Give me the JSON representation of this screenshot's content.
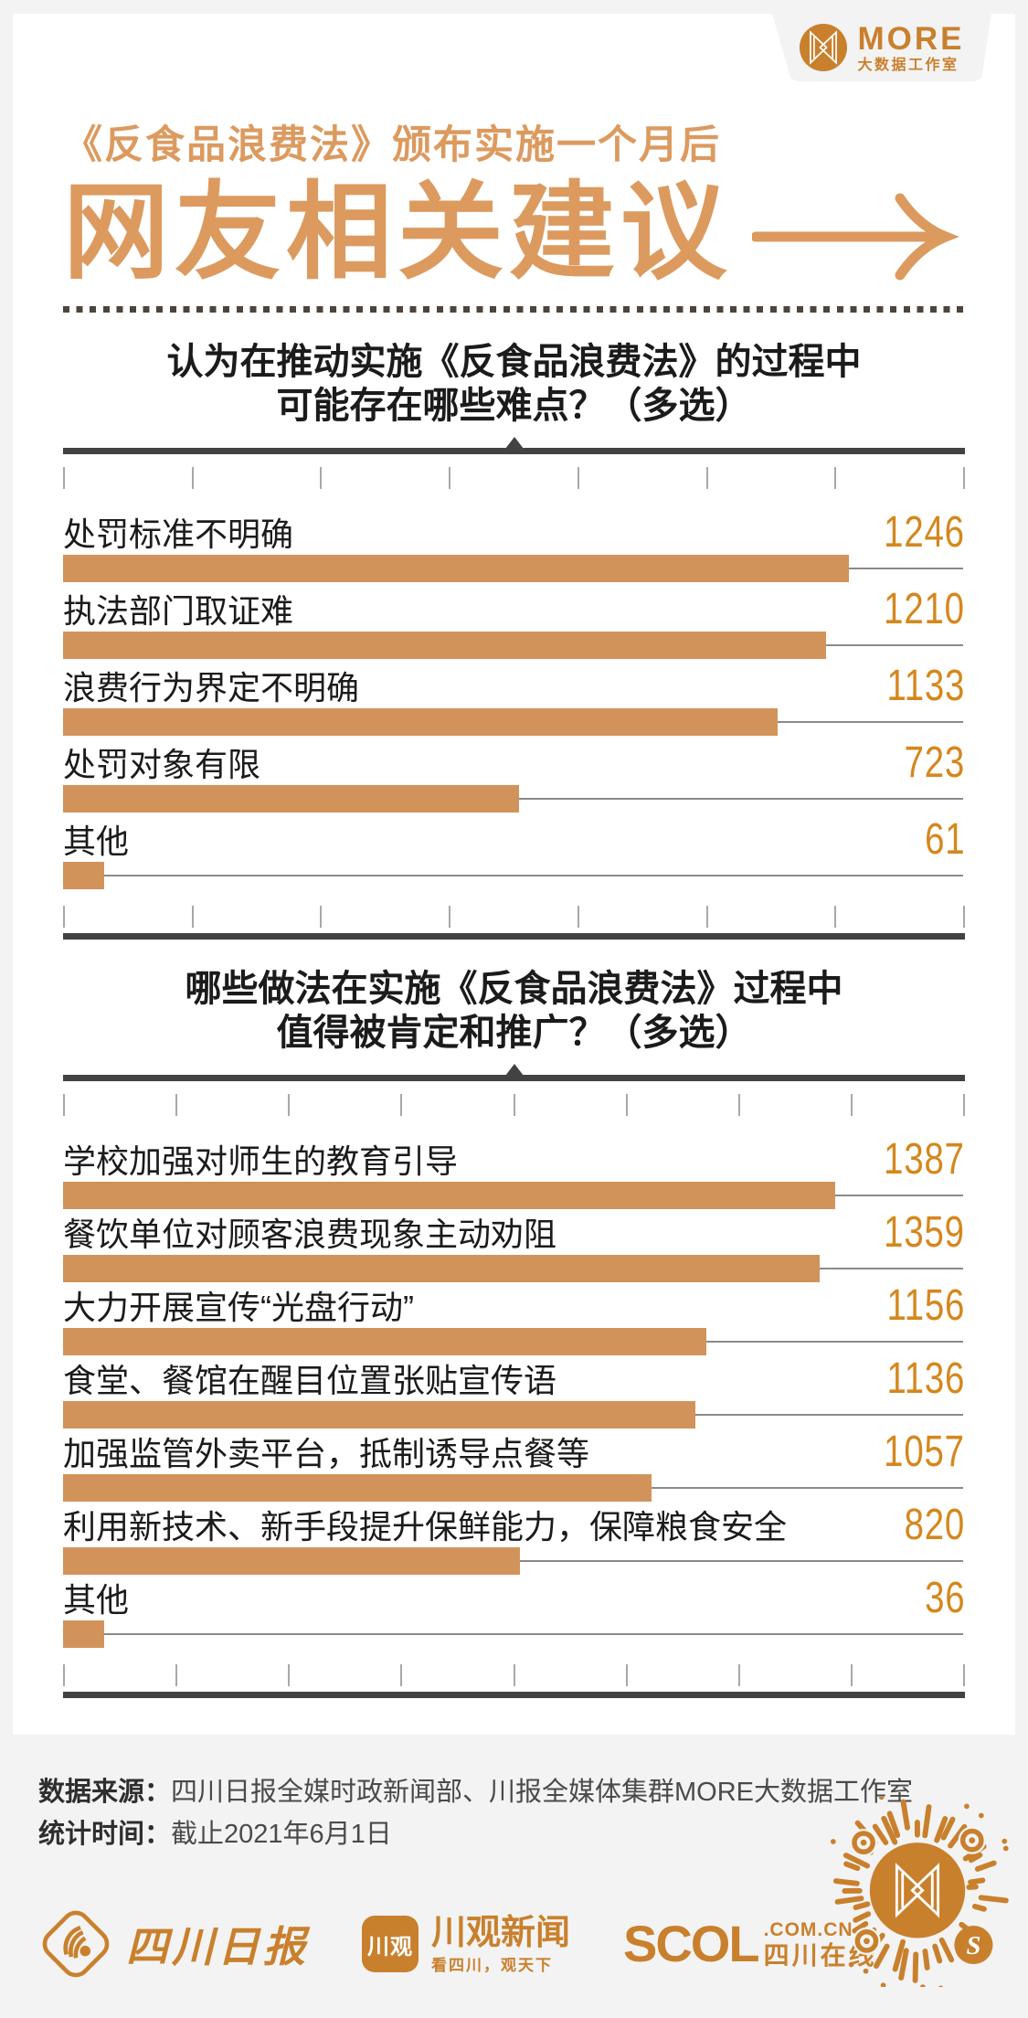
{
  "page": {
    "bg": "#f3f3f3",
    "accent_title": "#DC9A5F",
    "bar_color": "#D2935B",
    "value_color": "#D5871D",
    "brand": "#C9802D",
    "dark": "#1b1b1b"
  },
  "header": {
    "brand_name": "MORE",
    "brand_sub": "大数据工作室",
    "logo_icon": "more-butterfly-logo"
  },
  "title": {
    "subtitle": "《反食品浪费法》颁布实施一个月后",
    "main": "网友相关建议",
    "arrow_icon": "long-right-arrow"
  },
  "chart_data": [
    {
      "type": "bar",
      "title_line1": "认为在推动实施《反食品浪费法》的过程中",
      "title_line2": "可能存在哪些难点？（多选）",
      "categories": [
        "处罚标准不明确",
        "执法部门取证难",
        "浪费行为界定不明确",
        "处罚对象有限",
        "其他"
      ],
      "values": [
        1246,
        1210,
        1133,
        723,
        61
      ],
      "xlabel": "",
      "ylabel": "",
      "xlim": [
        0,
        1430
      ],
      "tick_count": 8,
      "grid": false,
      "legend": "none",
      "orientation": "horizontal"
    },
    {
      "type": "bar",
      "title_line1": "哪些做法在实施《反食品浪费法》过程中",
      "title_line2": "值得被肯定和推广？（多选）",
      "categories": [
        "学校加强对师生的教育引导",
        "餐饮单位对顾客浪费现象主动劝阻",
        "大力开展宣传“光盘行动”",
        "食堂、餐馆在醒目位置张贴宣传语",
        "加强监管外卖平台，抵制诱导点餐等",
        "利用新技术、新手段提升保鲜能力，保障粮食安全",
        "其他"
      ],
      "values": [
        1387,
        1359,
        1156,
        1136,
        1057,
        820,
        36
      ],
      "xlabel": "",
      "ylabel": "",
      "xlim": [
        0,
        1620
      ],
      "tick_count": 9,
      "grid": false,
      "legend": "none",
      "orientation": "horizontal"
    }
  ],
  "footer": {
    "source_label": "数据来源：",
    "source_text": "四川日报全媒时政新闻部、川报全媒体集群MORE大数据工作室",
    "time_label": "统计时间：",
    "time_text": "截止2021年6月1日",
    "logos": [
      {
        "name": "四川日报",
        "icon": "scrb-diamond-wave-logo"
      },
      {
        "name": "川观新闻",
        "badge": "川观",
        "tagline": "看四川，观天下",
        "icon": "chuanguan-badge-logo"
      },
      {
        "name": "SCOL",
        "domain": ".COM.CN",
        "cn": "四川在线",
        "icon": "scol-globe-logo"
      }
    ],
    "qr_badge_letter": "S",
    "qr_icon": "wechat-miniprogram-code"
  }
}
